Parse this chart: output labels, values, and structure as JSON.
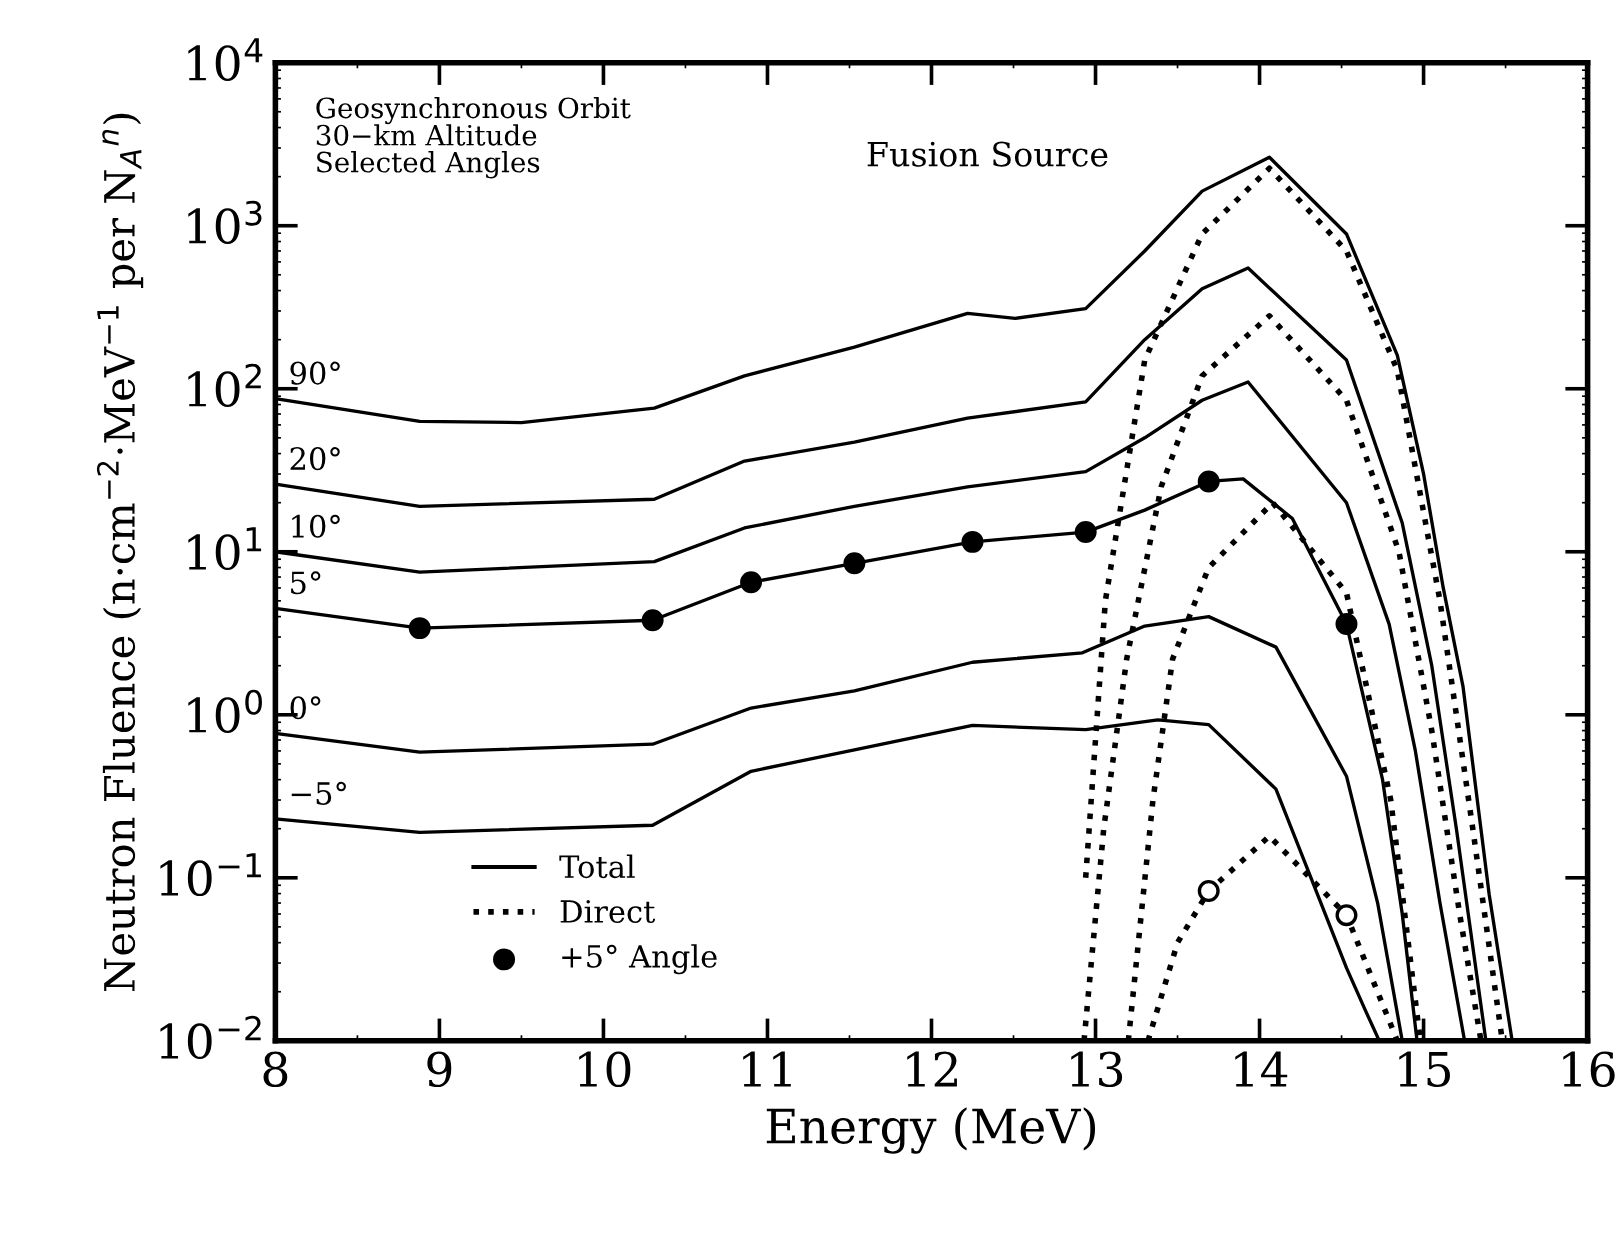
{
  "chart_data": {
    "type": "line",
    "xlabel": "Energy (MeV)",
    "ylabel": "Neutron Fluence (n·cm$^{−2}$·MeV$^{−1}$ per N$_{A}$$^{n}$)",
    "xlim": [
      8,
      16
    ],
    "xticks": [
      8,
      9,
      10,
      11,
      12,
      13,
      14,
      15,
      16
    ],
    "ylim": [
      0.01,
      10000
    ],
    "yticks": [
      {
        "value": 0.01,
        "label": "10$^{−2}$"
      },
      {
        "value": 0.1,
        "label": "10$^{−1}$"
      },
      {
        "value": 1,
        "label": "10$^{0}$"
      },
      {
        "value": 10,
        "label": "10$^{1}$"
      },
      {
        "value": 100,
        "label": "10$^{2}$"
      },
      {
        "value": 1000,
        "label": "10$^{3}$"
      },
      {
        "value": 10000,
        "label": "10$^{4}$"
      }
    ],
    "log": "y",
    "grid": false,
    "legend": "bottom left",
    "annotations": [
      "Geosynchronous Orbit\n30−km Altitude\nSelected Angles",
      "Fusion Source",
      "Total",
      "Direct"
    ],
    "series": [
      {
        "name": "90°",
        "color": "#000000",
        "line_style": "solid",
        "x": [
          8,
          8.88,
          9.5,
          10.31,
          10.86,
          11.53,
          12.22,
          12.51,
          12.94,
          13.3,
          13.65,
          14.06,
          14.53,
          14.84,
          15.0,
          15.12,
          15.24,
          15.4,
          15.54
        ],
        "values": [
          87,
          63,
          62,
          76,
          120,
          180,
          290,
          270,
          310,
          700,
          1630,
          2630,
          890,
          160,
          30,
          6,
          1.5,
          0.079,
          0.01
        ]
      },
      {
        "name": "20°",
        "color": "#000000",
        "line_style": "solid",
        "x": [
          8,
          8.88,
          10.31,
          10.86,
          11.53,
          12.22,
          12.94,
          13.3,
          13.65,
          13.93,
          14.53,
          14.87,
          15.05,
          15.2,
          15.38
        ],
        "values": [
          26,
          19,
          21,
          36,
          47,
          66,
          83,
          200,
          410,
          550,
          150,
          15,
          2,
          0.2,
          0.01
        ]
      },
      {
        "name": "10°",
        "color": "#000000",
        "line_style": "solid",
        "x": [
          8,
          8.88,
          10.31,
          10.86,
          11.53,
          12.22,
          12.94,
          13.3,
          13.65,
          13.93,
          14.53,
          14.79,
          14.95,
          15.1,
          15.25
        ],
        "values": [
          10,
          7.5,
          8.7,
          14,
          19,
          25,
          31,
          50,
          85,
          110,
          20,
          3.6,
          0.6,
          0.07,
          0.01
        ]
      },
      {
        "name": "5°",
        "color": "#000000",
        "line_style": "solid",
        "x": [
          8,
          8.88,
          10.3,
          10.9,
          11.53,
          12.25,
          12.94,
          13.3,
          13.69,
          13.9,
          14.2,
          14.53,
          14.75,
          14.87,
          14.96
        ],
        "values": [
          4.5,
          3.4,
          3.8,
          6.5,
          8.5,
          11.5,
          13.2,
          18,
          27,
          28,
          16,
          3.6,
          0.4,
          0.06,
          0.01
        ]
      },
      {
        "name": "0°",
        "color": "#000000",
        "line_style": "solid",
        "x": [
          8,
          8.88,
          10.3,
          10.9,
          11.53,
          12.25,
          12.92,
          13.3,
          13.69,
          14.1,
          14.53,
          14.72,
          14.87
        ],
        "values": [
          0.77,
          0.59,
          0.66,
          1.1,
          1.4,
          2.1,
          2.4,
          3.5,
          4.0,
          2.6,
          0.42,
          0.07,
          0.01
        ]
      },
      {
        "name": "−5°",
        "color": "#000000",
        "line_style": "solid",
        "x": [
          8,
          8.88,
          10.3,
          10.9,
          11.53,
          12.25,
          12.94,
          13.38,
          13.69,
          14.1,
          14.53,
          14.65,
          14.73
        ],
        "values": [
          0.23,
          0.19,
          0.21,
          0.45,
          0.61,
          0.86,
          0.81,
          0.93,
          0.87,
          0.35,
          0.028,
          0.015,
          0.01
        ]
      },
      {
        "color": "#000000",
        "line_style": "dotted",
        "x": [
          12.94,
          13.06,
          13.3,
          13.65,
          14.06,
          14.53,
          14.84,
          15.1,
          15.3,
          15.48
        ],
        "values": [
          0.1,
          5,
          150,
          890,
          2250,
          700,
          130,
          5,
          0.2,
          0.01
        ]
      },
      {
        "color": "#000000",
        "line_style": "dotted",
        "x": [
          12.93,
          13.05,
          13.19,
          13.4,
          13.65,
          14.06,
          14.53,
          14.85,
          15.05,
          15.22,
          15.35
        ],
        "values": [
          0.01,
          0.2,
          2.2,
          25,
          120,
          280,
          85,
          10,
          0.8,
          0.06,
          0.01
        ]
      },
      {
        "color": "#000000",
        "line_style": "dotted",
        "x": [
          13.2,
          13.35,
          13.47,
          13.69,
          14.08,
          14.53,
          14.8,
          14.98
        ],
        "values": [
          0.01,
          0.3,
          2.2,
          8,
          20,
          5.6,
          0.3,
          0.01
        ]
      },
      {
        "color": "#000000",
        "line_style": "dotted",
        "x": [
          13.32,
          13.5,
          13.69,
          14.06,
          14.53,
          14.84
        ],
        "values": [
          0.01,
          0.04,
          0.083,
          0.18,
          0.059,
          0.01
        ]
      },
      {
        "name": "+5° Angle",
        "type": "scatter",
        "marker": "circle",
        "color": "#000000",
        "x": [
          8.88,
          10.3,
          10.9,
          11.53,
          12.25,
          12.94,
          13.69,
          14.53
        ],
        "values": [
          3.4,
          3.8,
          6.5,
          8.5,
          11.5,
          13.2,
          27,
          3.6
        ]
      },
      {
        "type": "scatter",
        "marker": "circle",
        "color": "#ffffff",
        "x": [
          13.69,
          14.53
        ],
        "values": [
          0.083,
          0.059
        ]
      }
    ]
  }
}
